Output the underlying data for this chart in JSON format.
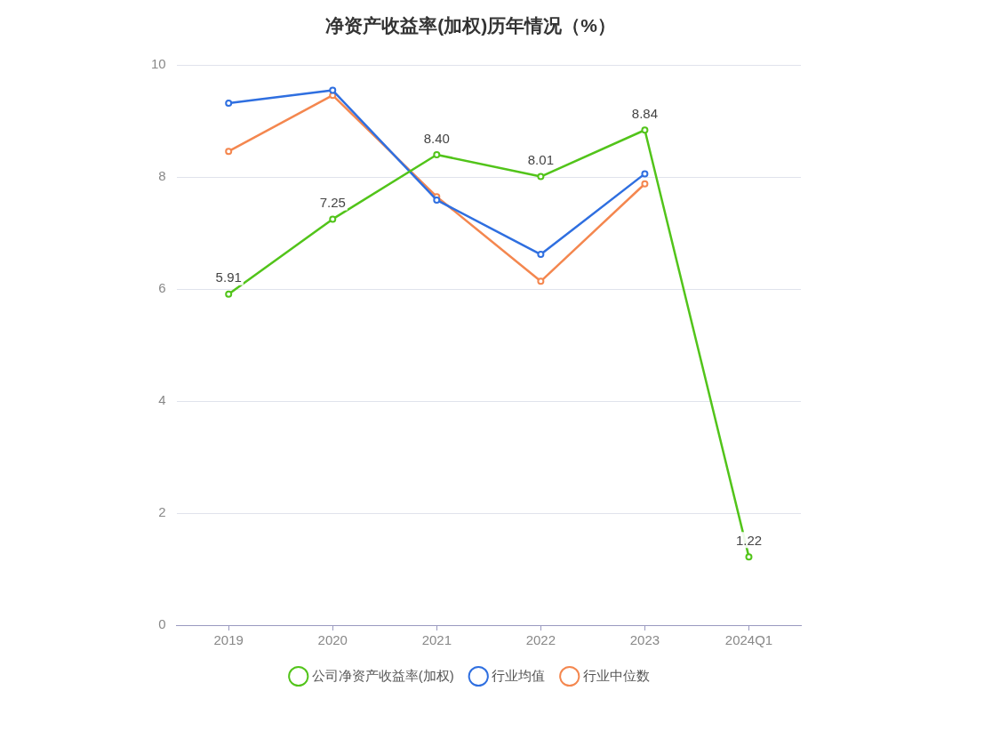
{
  "chart_data": {
    "type": "line",
    "title": "净资产收益率(加权)历年情况（%）",
    "categories": [
      "2019",
      "2020",
      "2021",
      "2022",
      "2023",
      "2024Q1"
    ],
    "series": [
      {
        "name": "公司净资产收益率(加权)",
        "color": "#52c41a",
        "values": [
          5.91,
          7.25,
          8.4,
          8.01,
          8.84,
          1.22
        ],
        "value_labels": [
          "5.91",
          "7.25",
          "8.40",
          "8.01",
          "8.84",
          "1.22"
        ]
      },
      {
        "name": "行业均值",
        "color": "#2f6fe0",
        "values": [
          9.32,
          9.55,
          7.59,
          6.62,
          8.06,
          null
        ]
      },
      {
        "name": "行业中位数",
        "color": "#f4874f",
        "values": [
          8.46,
          9.46,
          7.65,
          6.14,
          7.88,
          null
        ]
      }
    ],
    "ylim": [
      0,
      10
    ],
    "yticks": [
      0,
      2,
      4,
      6,
      8,
      10
    ],
    "grid": "y",
    "legend": "bottom",
    "marker": "circle",
    "line_style": "solid"
  }
}
